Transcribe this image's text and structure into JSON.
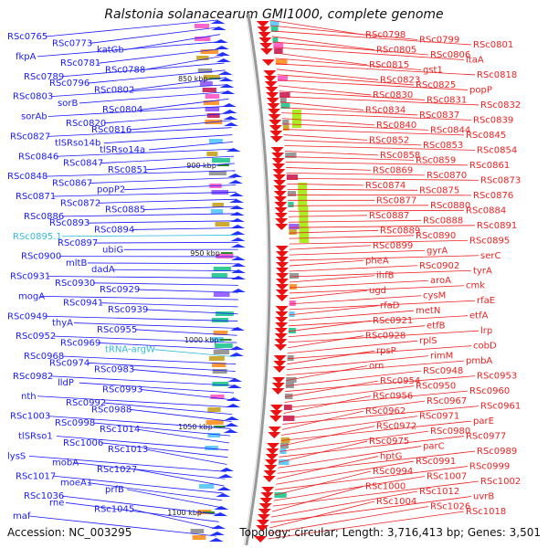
{
  "title": "Ralstonia solanacearum GMI1000, complete genome",
  "footer": {
    "accession": "Accession: NC_003295",
    "summary": "Topology: circular; Length: 3,716,413 bp; Genes: 3,501"
  },
  "colors": {
    "left_gene": "#1a1aff",
    "left_rna": "#33bbdd",
    "right_gene": "#ee2222",
    "backbone": "#999999",
    "kbp_tick": "#2a8a2a"
  },
  "kbp_marks": [
    {
      "label": "850 kbp"
    },
    {
      "label": "900 kbp"
    },
    {
      "label": "950 kbp"
    },
    {
      "label": "1000 kbp"
    },
    {
      "label": "1050 kbp"
    },
    {
      "label": "1100 kbp"
    }
  ],
  "left_labels": [
    {
      "text": "RSc0765",
      "type": "gene"
    },
    {
      "text": "RSc0773",
      "type": "gene"
    },
    {
      "text": "katGb",
      "type": "gene"
    },
    {
      "text": "fkpA",
      "type": "gene"
    },
    {
      "text": "RSc0781",
      "type": "gene"
    },
    {
      "text": "RSc0788",
      "type": "gene"
    },
    {
      "text": "RSc0789",
      "type": "gene"
    },
    {
      "text": "RSc0796",
      "type": "gene"
    },
    {
      "text": "RSc0802",
      "type": "gene"
    },
    {
      "text": "RSc0803",
      "type": "gene"
    },
    {
      "text": "sorB",
      "type": "gene"
    },
    {
      "text": "RSc0804",
      "type": "gene"
    },
    {
      "text": "sorAb",
      "type": "gene"
    },
    {
      "text": "RSc0820",
      "type": "gene"
    },
    {
      "text": "RSc0816",
      "type": "gene"
    },
    {
      "text": "RSc0827",
      "type": "gene"
    },
    {
      "text": "tlSRso14b",
      "type": "gene"
    },
    {
      "text": "tlSRso14a",
      "type": "gene"
    },
    {
      "text": "RSc0846",
      "type": "gene"
    },
    {
      "text": "RSc0847",
      "type": "gene"
    },
    {
      "text": "RSc0851",
      "type": "gene"
    },
    {
      "text": "RSc0848",
      "type": "gene"
    },
    {
      "text": "RSc0867",
      "type": "gene"
    },
    {
      "text": "popP2",
      "type": "gene"
    },
    {
      "text": "RSc0871",
      "type": "gene"
    },
    {
      "text": "RSc0872",
      "type": "gene"
    },
    {
      "text": "RSc0885",
      "type": "gene"
    },
    {
      "text": "RSc0886",
      "type": "gene"
    },
    {
      "text": "RSc0893",
      "type": "gene"
    },
    {
      "text": "RSc0894",
      "type": "gene"
    },
    {
      "text": "RSc0895.1",
      "type": "rna"
    },
    {
      "text": "RSc0897",
      "type": "gene"
    },
    {
      "text": "ubiG",
      "type": "gene"
    },
    {
      "text": "RSc0900",
      "type": "gene"
    },
    {
      "text": "mltB",
      "type": "gene"
    },
    {
      "text": "dadA",
      "type": "gene"
    },
    {
      "text": "RSc0931",
      "type": "gene"
    },
    {
      "text": "RSc0930",
      "type": "gene"
    },
    {
      "text": "RSc0929",
      "type": "gene"
    },
    {
      "text": "mogA",
      "type": "gene"
    },
    {
      "text": "RSc0941",
      "type": "gene"
    },
    {
      "text": "RSc0939",
      "type": "gene"
    },
    {
      "text": "RSc0949",
      "type": "gene"
    },
    {
      "text": "thyA",
      "type": "gene"
    },
    {
      "text": "RSc0955",
      "type": "gene"
    },
    {
      "text": "RSc0952",
      "type": "gene"
    },
    {
      "text": "RSc0969",
      "type": "gene"
    },
    {
      "text": "tRNA-argW",
      "type": "rna"
    },
    {
      "text": "RSc0968",
      "type": "gene"
    },
    {
      "text": "RSc0974",
      "type": "gene"
    },
    {
      "text": "RSc0983",
      "type": "gene"
    },
    {
      "text": "RSc0982",
      "type": "gene"
    },
    {
      "text": "lldP",
      "type": "gene"
    },
    {
      "text": "RSc0993",
      "type": "gene"
    },
    {
      "text": "nth",
      "type": "gene"
    },
    {
      "text": "RSc0992",
      "type": "gene"
    },
    {
      "text": "RSc0988",
      "type": "gene"
    },
    {
      "text": "RSc1003",
      "type": "gene"
    },
    {
      "text": "RSc0998",
      "type": "gene"
    },
    {
      "text": "RSc1014",
      "type": "gene"
    },
    {
      "text": "tlSRso1",
      "type": "gene"
    },
    {
      "text": "RSc1006",
      "type": "gene"
    },
    {
      "text": "RSc1013",
      "type": "gene"
    },
    {
      "text": "lysS",
      "type": "gene"
    },
    {
      "text": "mobA",
      "type": "gene"
    },
    {
      "text": "RSc1027",
      "type": "gene"
    },
    {
      "text": "RSc1017",
      "type": "gene"
    },
    {
      "text": "moeA1",
      "type": "gene"
    },
    {
      "text": "prfB",
      "type": "gene"
    },
    {
      "text": "RSc1036",
      "type": "gene"
    },
    {
      "text": "rne",
      "type": "gene"
    },
    {
      "text": "RSc1045",
      "type": "gene"
    },
    {
      "text": "maf",
      "type": "gene"
    }
  ],
  "right_labels": [
    {
      "text": "RSc0798"
    },
    {
      "text": "RSc0799"
    },
    {
      "text": "RSc0801"
    },
    {
      "text": "RSc0805"
    },
    {
      "text": "RSc0806"
    },
    {
      "text": "ltaA"
    },
    {
      "text": "RSc0815"
    },
    {
      "text": "gst1"
    },
    {
      "text": "RSc0818"
    },
    {
      "text": "RSc0823"
    },
    {
      "text": "RSc0825"
    },
    {
      "text": "popP"
    },
    {
      "text": "RSc0830"
    },
    {
      "text": "RSc0831"
    },
    {
      "text": "RSc0832"
    },
    {
      "text": "RSc0834"
    },
    {
      "text": "RSc0837"
    },
    {
      "text": "RSc0839"
    },
    {
      "text": "RSc0840"
    },
    {
      "text": "RSc0844"
    },
    {
      "text": "RSc0845"
    },
    {
      "text": "RSc0852"
    },
    {
      "text": "RSc0853"
    },
    {
      "text": "RSc0854"
    },
    {
      "text": "RSc0858"
    },
    {
      "text": "RSc0859"
    },
    {
      "text": "RSc0861"
    },
    {
      "text": "RSc0869"
    },
    {
      "text": "RSc0870"
    },
    {
      "text": "RSc0873"
    },
    {
      "text": "RSc0874"
    },
    {
      "text": "RSc0875"
    },
    {
      "text": "RSc0876"
    },
    {
      "text": "RSc0877"
    },
    {
      "text": "RSc0880"
    },
    {
      "text": "RSc0884"
    },
    {
      "text": "RSc0887"
    },
    {
      "text": "RSc0888"
    },
    {
      "text": "RSc0891"
    },
    {
      "text": "RSc0889"
    },
    {
      "text": "RSc0890"
    },
    {
      "text": "RSc0895"
    },
    {
      "text": "RSc0899"
    },
    {
      "text": "gyrA"
    },
    {
      "text": "serC"
    },
    {
      "text": "pheA"
    },
    {
      "text": "RSc0902"
    },
    {
      "text": "tyrA"
    },
    {
      "text": "ihfB"
    },
    {
      "text": "aroA"
    },
    {
      "text": "cmk"
    },
    {
      "text": "ugd"
    },
    {
      "text": "cysM"
    },
    {
      "text": "rfaE"
    },
    {
      "text": "rfaD"
    },
    {
      "text": "metN"
    },
    {
      "text": "etfA"
    },
    {
      "text": "RSc0921"
    },
    {
      "text": "etfB"
    },
    {
      "text": "lrp"
    },
    {
      "text": "RSc0928"
    },
    {
      "text": "rplS"
    },
    {
      "text": "cobD"
    },
    {
      "text": "rpsP"
    },
    {
      "text": "rimM"
    },
    {
      "text": "pmbA"
    },
    {
      "text": "orn"
    },
    {
      "text": "RSc0948"
    },
    {
      "text": "RSc0953"
    },
    {
      "text": "RSc0954"
    },
    {
      "text": "RSc0950"
    },
    {
      "text": "RSc0960"
    },
    {
      "text": "RSc0956"
    },
    {
      "text": "RSc0967"
    },
    {
      "text": "RSc0961"
    },
    {
      "text": "RSc0962"
    },
    {
      "text": "RSc0971"
    },
    {
      "text": "parE"
    },
    {
      "text": "RSc0972"
    },
    {
      "text": "RSc0980"
    },
    {
      "text": "RSc0977"
    },
    {
      "text": "RSc0975"
    },
    {
      "text": "parC"
    },
    {
      "text": "RSc0989"
    },
    {
      "text": "hptG"
    },
    {
      "text": "RSc0991"
    },
    {
      "text": "RSc0999"
    },
    {
      "text": "RSc0994"
    },
    {
      "text": "RSc1007"
    },
    {
      "text": "RSc1002"
    },
    {
      "text": "RSc1000"
    },
    {
      "text": "RSc1012"
    },
    {
      "text": "uvrB"
    },
    {
      "text": "RSc1004"
    },
    {
      "text": "RSc1026"
    },
    {
      "text": "RSc1018"
    }
  ]
}
